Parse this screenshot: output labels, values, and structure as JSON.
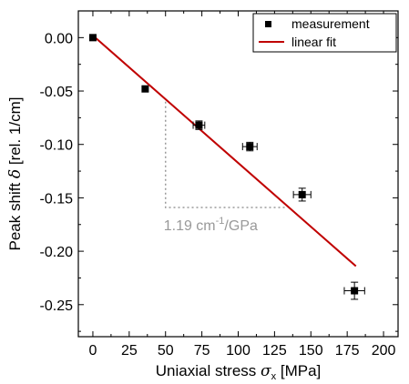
{
  "chart_data": {
    "type": "scatter",
    "xlabel": {
      "prefix": "Uniaxial stress ",
      "symbol": "σ",
      "subscript": "x",
      "suffix": " [MPa]"
    },
    "ylabel": {
      "prefix": "Peak shift ",
      "symbol": "δ",
      "suffix": " [rel. 1/cm]"
    },
    "xlim": [
      -10,
      210
    ],
    "ylim": [
      -0.28,
      0.025
    ],
    "x_ticks": [
      0,
      25,
      50,
      75,
      100,
      125,
      150,
      175,
      200
    ],
    "x_tick_labels": [
      "0",
      "25",
      "50",
      "75",
      "100",
      "125",
      "150",
      "175",
      "200"
    ],
    "y_ticks": [
      0.0,
      -0.05,
      -0.1,
      -0.15,
      -0.2,
      -0.25
    ],
    "y_tick_labels": [
      "0.00",
      "-0.05",
      "-0.10",
      "-0.15",
      "-0.20",
      "-0.25"
    ],
    "grid": false,
    "legend_position": "top-right",
    "legend": {
      "measurement": "measurement",
      "fit": "linear fit"
    },
    "series": [
      {
        "name": "measurement",
        "color": "#000000",
        "x": [
          0,
          36,
          73,
          108,
          144,
          180
        ],
        "y": [
          0.0,
          -0.048,
          -0.082,
          -0.102,
          -0.147,
          -0.237
        ],
        "xerr": [
          0,
          0,
          4,
          5,
          6,
          7
        ],
        "yerr": [
          0,
          0,
          0.004,
          0.004,
          0.006,
          0.008
        ]
      },
      {
        "name": "linear fit",
        "color": "#c00000",
        "x": [
          0,
          181
        ],
        "y": [
          0.002,
          -0.214
        ]
      }
    ],
    "annotation": {
      "triangle": {
        "x1": 50,
        "x2": 133,
        "y_top": -0.06,
        "y_bottom": -0.159
      },
      "text_main": "1.19 cm",
      "text_sup": "-1",
      "text_tail": "/GPa",
      "text_x": 50,
      "text_y": -0.175,
      "color": "#999999"
    }
  }
}
